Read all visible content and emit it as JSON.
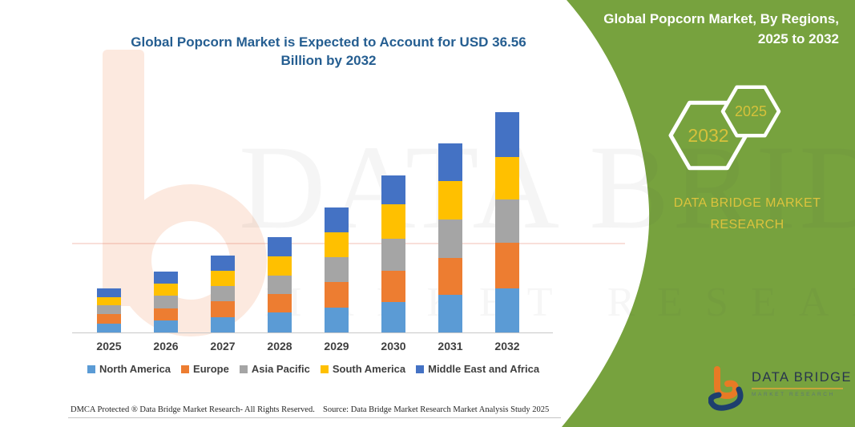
{
  "header": {
    "left_title": "Global Popcorn Market is Expected to Account for USD 36.56 Billion by 2032",
    "right_title": "Global Popcorn Market, By Regions, 2025 to 2032"
  },
  "right_panel": {
    "panel_color": "#77A23E",
    "accent_gold": "#D6C13B",
    "hexagon_back_label": "2032",
    "hexagon_front_label": "2025",
    "brand_line1": "DATA BRIDGE MARKET",
    "brand_line2": "RESEARCH",
    "logo_title": "DATA BRIDGE",
    "logo_subtitle": "MARKET RESEARCH"
  },
  "watermark": {
    "line1": "DATA BRIDGE",
    "line2": "MARKET RESEARCH"
  },
  "chart_data": {
    "type": "bar",
    "stacked": true,
    "title": "Global Popcorn Market is Expected to Account for USD 36.56 Billion by 2032",
    "unit": "USD Billion",
    "categories": [
      "2025",
      "2026",
      "2027",
      "2028",
      "2029",
      "2030",
      "2031",
      "2032"
    ],
    "series": [
      {
        "name": "North America",
        "color": "#5B9BD5",
        "values": [
          1.59,
          2.12,
          2.65,
          3.4,
          4.3,
          5.2,
          6.3,
          7.45
        ]
      },
      {
        "name": "Europe",
        "color": "#ED7D31",
        "values": [
          1.59,
          2.05,
          2.6,
          3.1,
          4.2,
          5.1,
          6.2,
          7.5
        ]
      },
      {
        "name": "Asia Pacific",
        "color": "#A5A5A5",
        "values": [
          1.46,
          2.05,
          2.58,
          3.1,
          4.15,
          5.3,
          6.3,
          7.19
        ]
      },
      {
        "name": "South America",
        "color": "#FFC000",
        "values": [
          1.33,
          1.99,
          2.5,
          3.1,
          4.05,
          5.7,
          6.35,
          7.05
        ]
      },
      {
        "name": "Middle East and Africa",
        "color": "#4472C4",
        "values": [
          1.46,
          1.99,
          2.52,
          3.2,
          4.1,
          4.85,
          6.3,
          7.37
        ]
      }
    ],
    "totals": [
      7.43,
      10.2,
      12.85,
      15.9,
      20.8,
      26.15,
      31.45,
      36.56
    ],
    "ylim": [
      0,
      38
    ],
    "y_axis_visible": false,
    "grid": false,
    "legend_position": "bottom"
  },
  "footer": {
    "left": "DMCA Protected ® Data Bridge Market Research-  All Rights Reserved.",
    "right": "Source: Data Bridge Market Research  Market Analysis Study 2025"
  }
}
